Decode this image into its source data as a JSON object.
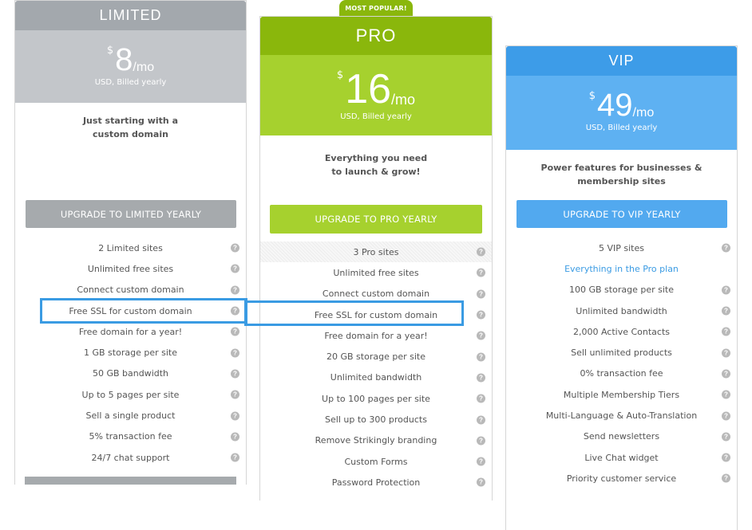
{
  "badge": "MOST POPULAR!",
  "plans": {
    "limited": {
      "name": "LIMITED",
      "currency": "$",
      "amount": "8",
      "per": "/mo",
      "billed": "USD, Billed yearly",
      "desc1": "Just starting with a",
      "desc2": "custom domain",
      "cta": "UPGRADE TO LIMITED YEARLY",
      "features": [
        "2 Limited sites",
        "Unlimited free sites",
        "Connect custom domain",
        "Free SSL for custom domain",
        "Free domain for a year!",
        "1 GB storage per site",
        "50 GB bandwidth",
        "Up to 5 pages per site",
        "Sell a single product",
        "5% transaction fee",
        "24/7 chat support"
      ]
    },
    "pro": {
      "name": "PRO",
      "currency": "$",
      "amount": "16",
      "per": "/mo",
      "billed": "USD, Billed yearly",
      "desc1": "Everything you need",
      "desc2": "to launch & grow!",
      "cta": "UPGRADE TO PRO YEARLY",
      "features": [
        "3 Pro sites",
        "Unlimited free sites",
        "Connect custom domain",
        "Free SSL for custom domain",
        "Free domain for a year!",
        "20 GB storage per site",
        "Unlimited bandwidth",
        "Up to 100 pages per site",
        "Sell up to 300 products",
        "Remove Strikingly branding",
        "Custom Forms",
        "Password Protection"
      ]
    },
    "vip": {
      "name": "VIP",
      "currency": "$",
      "amount": "49",
      "per": "/mo",
      "billed": "USD, Billed yearly",
      "desc1": "Power features for businesses &",
      "desc2": "membership sites",
      "cta": "UPGRADE TO VIP YEARLY",
      "features": [
        "5 VIP sites",
        "Everything in the Pro plan",
        "100 GB storage per site",
        "Unlimited bandwidth",
        "2,000 Active Contacts",
        "Sell unlimited products",
        "0% transaction fee",
        "Multiple Membership Tiers",
        "Multi-Language & Auto-Translation",
        "Send newsletters",
        "Live Chat widget",
        "Priority customer service"
      ]
    }
  },
  "help_icon": "question-circle-icon",
  "colors": {
    "limited": "#a3a8ad",
    "pro": "#8ab70c",
    "vip": "#3d9ce8",
    "highlight": "#3a9be3"
  }
}
